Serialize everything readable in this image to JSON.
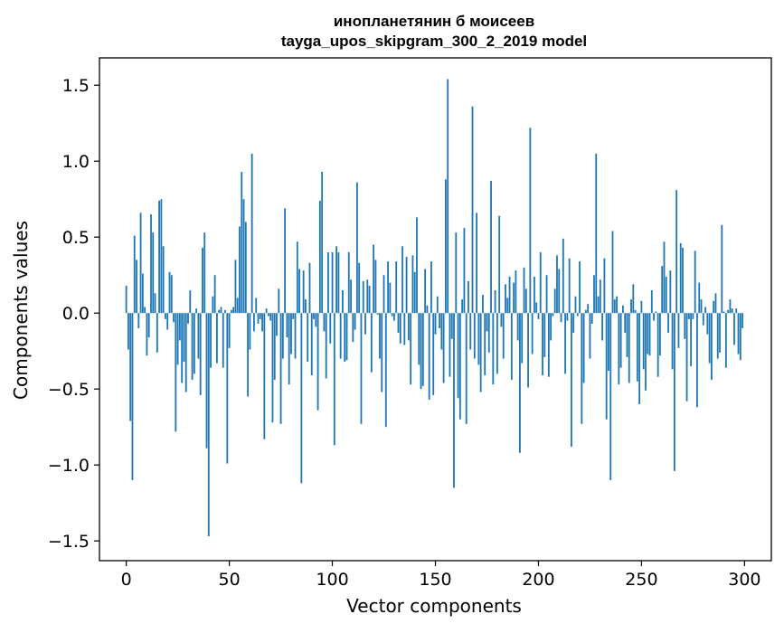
{
  "chart_data": {
    "type": "bar",
    "title_line1": "инопланетянин б моисеев",
    "title_line2": "tayga_upos_skipgram_300_2_2019 model",
    "xlabel": "Vector components",
    "ylabel": "Components values",
    "xlim": [
      -13,
      313
    ],
    "ylim": [
      -1.63,
      1.68
    ],
    "xticks": [
      0,
      50,
      100,
      150,
      200,
      250,
      300
    ],
    "yticks": [
      -1.5,
      -1.0,
      -0.5,
      0.0,
      0.5,
      1.0,
      1.5
    ],
    "ytick_labels": [
      "−1.5",
      "−1.0",
      "−0.5",
      "0.0",
      "0.5",
      "1.0",
      "1.5"
    ],
    "grid": false,
    "bar_color": "#1f77b4",
    "values": [
      0.18,
      -0.24,
      -0.71,
      -1.1,
      0.51,
      0.35,
      -0.1,
      0.66,
      0.26,
      0.04,
      -0.28,
      -0.16,
      0.65,
      0.53,
      0.13,
      -0.26,
      0.74,
      0.75,
      0.44,
      -0.04,
      -0.11,
      0.27,
      0.25,
      -0.06,
      -0.78,
      -0.34,
      -0.18,
      -0.46,
      -0.32,
      -0.52,
      -0.07,
      0.15,
      -0.44,
      -0.4,
      0.03,
      -0.3,
      -0.54,
      0.43,
      0.53,
      -0.89,
      -1.47,
      -0.36,
      0.11,
      0.25,
      -0.33,
      0.02,
      0.04,
      -0.36,
      0.02,
      -0.99,
      -0.23,
      0.02,
      0.04,
      0.35,
      0.1,
      0.57,
      0.93,
      0.75,
      0.6,
      -0.55,
      -0.24,
      1.05,
      -0.12,
      0.1,
      -0.07,
      -0.04,
      -0.12,
      -0.83,
      0.03,
      -0.02,
      -0.05,
      -0.72,
      -0.44,
      -0.15,
      0.16,
      -0.73,
      -0.3,
      0.69,
      -0.16,
      -0.47,
      -0.27,
      -0.04,
      -0.3,
      0.47,
      0.29,
      -1.12,
      0.28,
      0.09,
      -0.32,
      0.33,
      -0.41,
      -0.04,
      -0.09,
      -0.64,
      0.74,
      0.93,
      -0.12,
      -0.43,
      0.4,
      -0.2,
      0.4,
      -0.87,
      0.44,
      0.4,
      -0.3,
      0.15,
      -0.32,
      -0.31,
      0.4,
      0.22,
      -0.19,
      -0.11,
      0.86,
      0.33,
      -0.73,
      0.21,
      -0.14,
      0.22,
      0.18,
      -0.39,
      0.45,
      0.35,
      -0.01,
      -0.3,
      -0.52,
      0.25,
      -0.75,
      0.34,
      0.2,
      -0.02,
      -0.05,
      0.34,
      -0.13,
      -0.2,
      0.44,
      -0.21,
      0.37,
      -0.18,
      -0.47,
      0.38,
      0.27,
      0.63,
      -0.34,
      -0.5,
      -0.48,
      0.29,
      0.05,
      -0.57,
      0.34,
      -0.54,
      -0.14,
      0.11,
      -0.1,
      -0.24,
      -0.46,
      0.88,
      1.54,
      -0.42,
      -0.17,
      -1.15,
      0.53,
      -0.56,
      -0.7,
      0.09,
      0.56,
      -0.73,
      0.21,
      -0.24,
      1.36,
      -0.3,
      0.66,
      -0.34,
      -0.52,
      0.12,
      -0.41,
      -0.12,
      -0.26,
      0.87,
      -0.47,
      0.15,
      -0.4,
      0.64,
      -0.09,
      -0.3,
      0.19,
      0.1,
      0.24,
      -0.44,
      0.2,
      0.28,
      -0.18,
      -0.92,
      -0.33,
      0.3,
      0.16,
      -0.49,
      1.22,
      -0.27,
      0.24,
      0.07,
      -0.04,
      0.4,
      -0.41,
      -0.29,
      0.25,
      -0.42,
      -0.18,
      -0.02,
      0.16,
      0.38,
      0.29,
      -0.06,
      0.49,
      -0.4,
      -0.05,
      0.36,
      -0.88,
      -0.13,
      0.11,
      -0.02,
      0.34,
      -0.73,
      -0.46,
      0.02,
      0.06,
      -0.3,
      -0.07,
      0.25,
      1.05,
      0.11,
      0.22,
      -0.18,
      0.36,
      -0.7,
      -0.38,
      -1.1,
      0.54,
      0.09,
      0.11,
      -0.47,
      -0.36,
      0.05,
      -0.13,
      -0.29,
      -0.46,
      0.09,
      0.19,
      0.02,
      -0.45,
      -0.6,
      0.08,
      -0.37,
      -0.51,
      -0.27,
      -0.28,
      0.15,
      -0.05,
      0.01,
      -0.42,
      -0.28,
      0.31,
      0.47,
      0.24,
      -0.13,
      0.28,
      -0.37,
      -1.04,
      0.81,
      -0.23,
      0.46,
      0.43,
      -0.17,
      -0.58,
      -0.04,
      -0.35,
      -0.04,
      0.41,
      -0.62,
      0.2,
      0.09,
      -0.08,
      0.04,
      -0.14,
      -0.33,
      -0.44,
      0.08,
      0.13,
      -0.3,
      -0.26,
      0.58,
      0.01,
      -0.36,
      0.02,
      0.09,
      0.03,
      -0.21,
      0.03,
      -0.27,
      -0.31,
      -0.1
    ]
  }
}
